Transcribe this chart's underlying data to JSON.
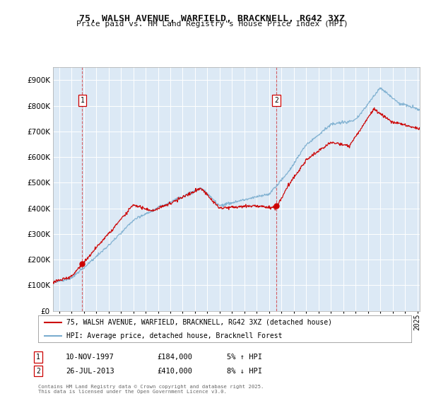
{
  "title": "75, WALSH AVENUE, WARFIELD, BRACKNELL, RG42 3XZ",
  "subtitle": "Price paid vs. HM Land Registry's House Price Index (HPI)",
  "legend_line1": "75, WALSH AVENUE, WARFIELD, BRACKNELL, RG42 3XZ (detached house)",
  "legend_line2": "HPI: Average price, detached house, Bracknell Forest",
  "footnote": "Contains HM Land Registry data © Crown copyright and database right 2025.\nThis data is licensed under the Open Government Licence v3.0.",
  "purchase1_label": "1",
  "purchase1_date": "10-NOV-1997",
  "purchase1_price": "£184,000",
  "purchase1_hpi": "5% ↑ HPI",
  "purchase2_label": "2",
  "purchase2_date": "26-JUL-2013",
  "purchase2_price": "£410,000",
  "purchase2_hpi": "8% ↓ HPI",
  "ylim": [
    0,
    950000
  ],
  "yticks": [
    0,
    100000,
    200000,
    300000,
    400000,
    500000,
    600000,
    700000,
    800000,
    900000
  ],
  "bg_color": "#dce9f5",
  "line_color_red": "#cc0000",
  "line_color_blue": "#7aadcf",
  "grid_color": "#c8daea",
  "purchase1_x": 1997.87,
  "purchase1_y": 184000,
  "purchase2_x": 2013.57,
  "purchase2_y": 410000,
  "vline1_x": 1997.87,
  "vline2_x": 2013.57,
  "xlim_start": 1995.5,
  "xlim_end": 2025.2
}
